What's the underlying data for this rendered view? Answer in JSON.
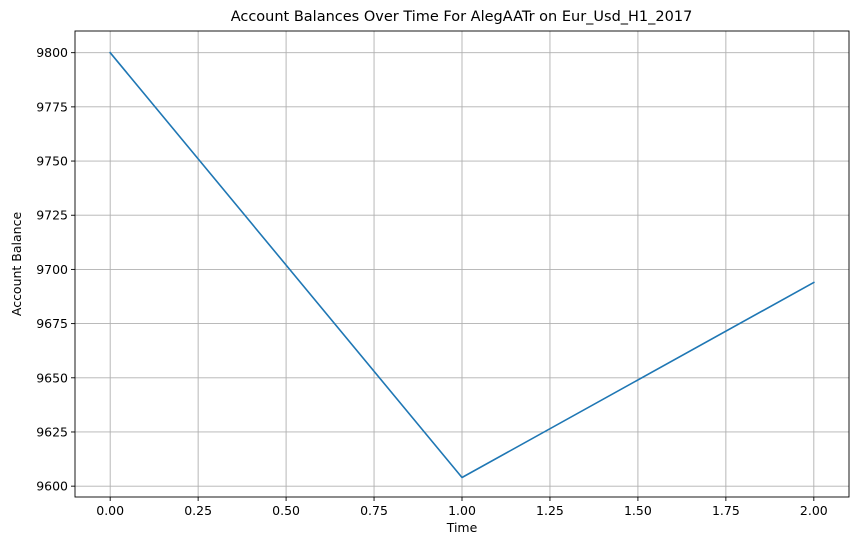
{
  "chart_data": {
    "type": "line",
    "title": "Account Balances Over Time For AlegAATr on Eur_Usd_H1_2017",
    "xlabel": "Time",
    "ylabel": "Account Balance",
    "xlim": [
      -0.1,
      2.1
    ],
    "ylim": [
      9595,
      9810
    ],
    "grid": true,
    "x_ticks": [
      0.0,
      0.25,
      0.5,
      0.75,
      1.0,
      1.25,
      1.5,
      1.75,
      2.0
    ],
    "x_tick_labels": [
      "0.00",
      "0.25",
      "0.50",
      "0.75",
      "1.00",
      "1.25",
      "1.50",
      "1.75",
      "2.00"
    ],
    "y_ticks": [
      9600,
      9625,
      9650,
      9675,
      9700,
      9725,
      9750,
      9775,
      9800
    ],
    "y_tick_labels": [
      "9600",
      "9625",
      "9650",
      "9675",
      "9700",
      "9725",
      "9750",
      "9775",
      "9800"
    ],
    "series": [
      {
        "x": [
          0,
          1,
          2
        ],
        "values": [
          9800,
          9604,
          9694
        ],
        "color": "#1f77b4"
      }
    ]
  }
}
